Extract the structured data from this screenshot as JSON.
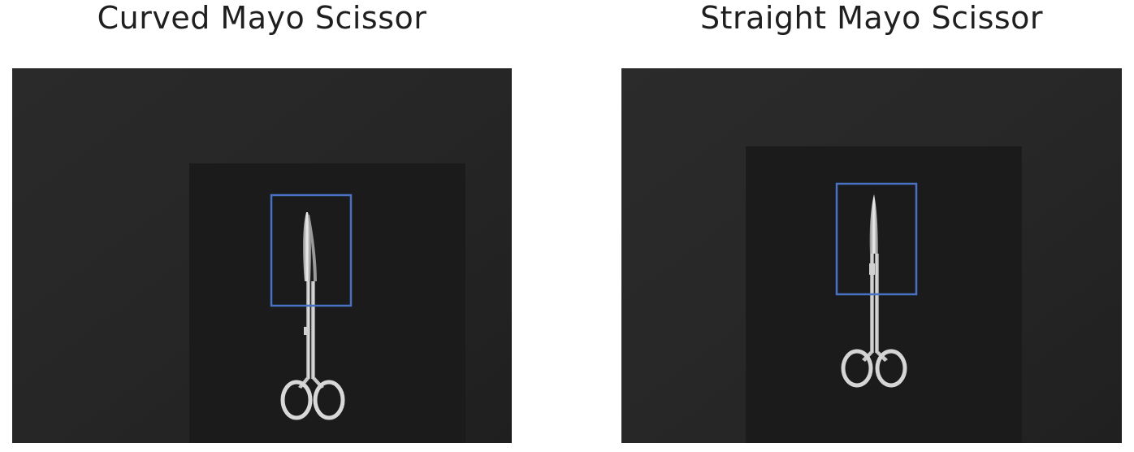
{
  "panels": [
    {
      "title": "Curved Mayo Scissor",
      "image_subject": "curved-mayo-scissor-xray",
      "box_color": "#4a72c4",
      "blade_shape": "curved"
    },
    {
      "title": "Straight Mayo Scissor",
      "image_subject": "straight-mayo-scissor-xray",
      "box_color": "#4a72c4",
      "blade_shape": "straight"
    }
  ]
}
